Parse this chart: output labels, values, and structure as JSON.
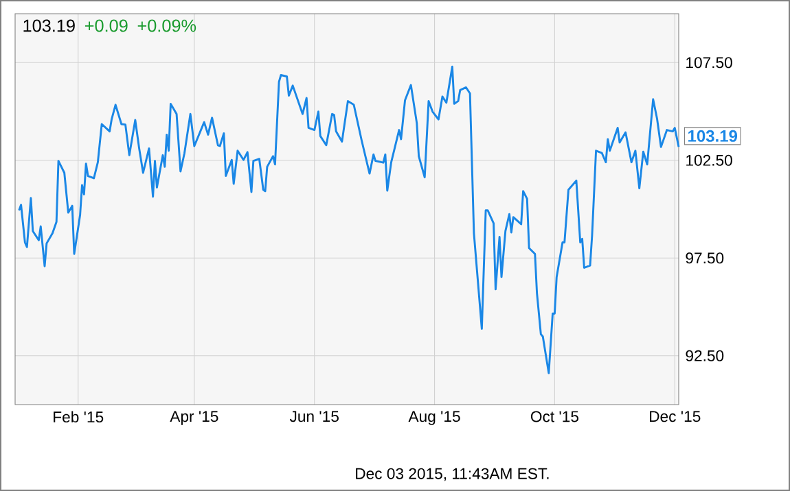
{
  "chart_data": {
    "type": "line",
    "x": [
      "2015-01-02",
      "2015-01-03",
      "2015-01-05",
      "2015-01-06",
      "2015-01-08",
      "2015-01-09",
      "2015-01-12",
      "2015-01-13",
      "2015-01-15",
      "2015-01-16",
      "2015-01-19",
      "2015-01-21",
      "2015-01-22",
      "2015-01-25",
      "2015-01-27",
      "2015-01-29",
      "2015-01-30",
      "2015-02-02",
      "2015-02-03",
      "2015-02-04",
      "2015-02-05",
      "2015-02-06",
      "2015-02-09",
      "2015-02-11",
      "2015-02-13",
      "2015-02-17",
      "2015-02-18",
      "2015-02-20",
      "2015-02-23",
      "2015-02-25",
      "2015-02-27",
      "2015-03-02",
      "2015-03-04",
      "2015-03-06",
      "2015-03-09",
      "2015-03-11",
      "2015-03-12",
      "2015-03-13",
      "2015-03-16",
      "2015-03-17",
      "2015-03-18",
      "2015-03-19",
      "2015-03-20",
      "2015-03-23",
      "2015-03-25",
      "2015-03-27",
      "2015-03-30",
      "2015-04-01",
      "2015-04-06",
      "2015-04-08",
      "2015-04-10",
      "2015-04-13",
      "2015-04-14",
      "2015-04-16",
      "2015-04-17",
      "2015-04-20",
      "2015-04-21",
      "2015-04-23",
      "2015-04-26",
      "2015-04-28",
      "2015-04-30",
      "2015-05-01",
      "2015-05-04",
      "2015-05-06",
      "2015-05-07",
      "2015-05-08",
      "2015-05-11",
      "2015-05-12",
      "2015-05-14",
      "2015-05-15",
      "2015-05-18",
      "2015-05-19",
      "2015-05-21",
      "2015-05-26",
      "2015-05-28",
      "2015-05-29",
      "2015-06-01",
      "2015-06-03",
      "2015-06-04",
      "2015-06-07",
      "2015-06-10",
      "2015-06-11",
      "2015-06-12",
      "2015-06-15",
      "2015-06-16",
      "2015-06-18",
      "2015-06-21",
      "2015-06-25",
      "2015-06-29",
      "2015-07-01",
      "2015-07-02",
      "2015-07-06",
      "2015-07-07",
      "2015-07-08",
      "2015-07-10",
      "2015-07-14",
      "2015-07-15",
      "2015-07-17",
      "2015-07-20",
      "2015-07-23",
      "2015-07-24",
      "2015-07-27",
      "2015-07-29",
      "2015-07-31",
      "2015-08-03",
      "2015-08-05",
      "2015-08-07",
      "2015-08-10",
      "2015-08-11",
      "2015-08-13",
      "2015-08-14",
      "2015-08-17",
      "2015-08-19",
      "2015-08-21",
      "2015-08-25",
      "2015-08-27",
      "2015-08-28",
      "2015-08-31",
      "2015-09-01",
      "2015-09-03",
      "2015-09-04",
      "2015-09-06",
      "2015-09-08",
      "2015-09-09",
      "2015-09-10",
      "2015-09-14",
      "2015-09-15",
      "2015-09-17",
      "2015-09-18",
      "2015-09-21",
      "2015-09-22",
      "2015-09-24",
      "2015-09-25",
      "2015-09-28",
      "2015-09-30",
      "2015-10-01",
      "2015-10-02",
      "2015-10-05",
      "2015-10-06",
      "2015-10-08",
      "2015-10-12",
      "2015-10-14",
      "2015-10-15",
      "2015-10-16",
      "2015-10-19",
      "2015-10-20",
      "2015-10-22",
      "2015-10-25",
      "2015-10-27",
      "2015-10-28",
      "2015-10-29",
      "2015-11-02",
      "2015-11-03",
      "2015-11-06",
      "2015-11-09",
      "2015-11-11",
      "2015-11-13",
      "2015-11-15",
      "2015-11-17",
      "2015-11-20",
      "2015-11-22",
      "2015-11-24",
      "2015-11-27",
      "2015-11-30",
      "2015-12-01",
      "2015-12-03"
    ],
    "series": [
      {
        "color": "#1a87e6",
        "values": [
          99.94,
          100.22,
          98.3,
          98.06,
          100.57,
          98.88,
          98.41,
          99.12,
          97.08,
          98.25,
          98.77,
          99.35,
          102.47,
          101.86,
          99.82,
          100.17,
          97.71,
          99.7,
          101.23,
          100.76,
          102.33,
          101.7,
          101.58,
          102.4,
          104.35,
          103.98,
          104.59,
          105.34,
          104.35,
          104.33,
          102.76,
          104.56,
          103.11,
          101.86,
          103.11,
          100.64,
          102.47,
          101.11,
          102.76,
          102.17,
          103.81,
          102.99,
          105.39,
          104.87,
          101.93,
          102.87,
          104.87,
          103.23,
          104.45,
          103.81,
          104.68,
          103.27,
          103.23,
          103.88,
          101.7,
          102.52,
          101.3,
          102.99,
          102.52,
          102.92,
          100.88,
          102.47,
          102.57,
          101.0,
          100.92,
          102.17,
          102.71,
          102.29,
          106.51,
          106.86,
          106.79,
          105.81,
          106.32,
          104.87,
          105.69,
          104.16,
          104.05,
          104.99,
          103.74,
          103.27,
          104.87,
          104.82,
          103.98,
          103.46,
          104.16,
          105.53,
          105.34,
          103.51,
          101.82,
          102.8,
          102.47,
          102.38,
          102.8,
          100.95,
          102.4,
          104.05,
          103.58,
          105.57,
          106.35,
          104.4,
          102.71,
          101.63,
          105.53,
          104.99,
          104.59,
          105.76,
          105.45,
          107.29,
          105.39,
          105.53,
          106.09,
          106.23,
          105.92,
          98.77,
          93.88,
          99.94,
          99.94,
          99.28,
          95.9,
          98.58,
          96.53,
          98.88,
          99.75,
          98.81,
          99.59,
          99.23,
          100.92,
          100.53,
          98.01,
          97.71,
          95.71,
          93.6,
          93.48,
          91.61,
          94.66,
          94.66,
          96.53,
          98.3,
          98.3,
          100.99,
          101.46,
          98.3,
          98.48,
          97.0,
          97.12,
          98.65,
          102.99,
          102.87,
          102.4,
          103.58,
          102.99,
          104.16,
          103.41,
          103.93,
          102.4,
          102.99,
          101.07,
          102.94,
          102.29,
          105.62,
          104.63,
          103.18,
          104.05,
          103.98,
          104.16,
          103.19
        ]
      }
    ],
    "xlim": [
      "2014-12-31",
      "2015-12-03"
    ],
    "xticks": [
      {
        "value": "2015-02-01",
        "label": "Feb '15"
      },
      {
        "value": "2015-04-01",
        "label": "Apr '15"
      },
      {
        "value": "2015-06-01",
        "label": "Jun '15"
      },
      {
        "value": "2015-08-01",
        "label": "Aug '15"
      },
      {
        "value": "2015-10-01",
        "label": "Oct '15"
      },
      {
        "value": "2015-12-01",
        "label": "Dec '15"
      }
    ],
    "ylim": [
      90,
      110
    ],
    "yticks": [
      {
        "value": 92.5,
        "label": "92.50"
      },
      {
        "value": 97.5,
        "label": "97.50"
      },
      {
        "value": 102.5,
        "label": "102.50"
      },
      {
        "value": 107.5,
        "label": "107.50"
      }
    ],
    "grid": true,
    "marker": "none",
    "line_style": "solid",
    "annotations": [
      "103.19",
      "+0.09",
      "+0.09%",
      {
        "text": "103.19",
        "x": "2015-12-03",
        "y": 103.19
      },
      "Dec 03 2015, 11:43AM EST."
    ]
  }
}
